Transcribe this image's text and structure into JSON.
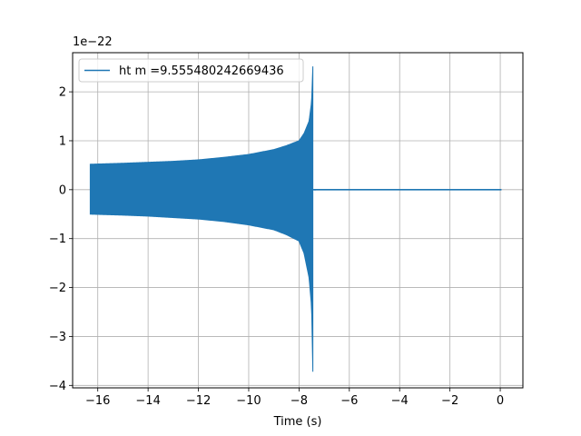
{
  "chart_data": {
    "type": "line",
    "title": "",
    "xlabel": "Time (s)",
    "ylabel": "",
    "y_scale_label": "1e−22",
    "xlim": [
      -17.0,
      0.9
    ],
    "ylim": [
      -4.05,
      2.8
    ],
    "grid": true,
    "legend_position": "top-left",
    "x_ticks": [
      -16,
      -14,
      -12,
      -10,
      -8,
      -6,
      -4,
      -2,
      0
    ],
    "x_tick_labels": [
      "−16",
      "−14",
      "−12",
      "−10",
      "−8",
      "−6",
      "−4",
      "−2",
      "0"
    ],
    "y_ticks": [
      -4,
      -3,
      -2,
      -1,
      0,
      1,
      2
    ],
    "y_tick_labels": [
      "−4",
      "−3",
      "−2",
      "−1",
      "0",
      "1",
      "2"
    ],
    "series": [
      {
        "name": "ht m =9.555480242669436",
        "color": "#1f77b4",
        "start": -16.3,
        "merger": -7.4,
        "end": 0.05,
        "upper_envelope": {
          "x": [
            -16.3,
            -15.0,
            -14.0,
            -13.0,
            -12.0,
            -11.0,
            -10.0,
            -9.0,
            -8.5,
            -8.0,
            -7.8,
            -7.6,
            -7.5,
            -7.45
          ],
          "y": [
            0.52,
            0.54,
            0.56,
            0.58,
            0.61,
            0.66,
            0.72,
            0.82,
            0.9,
            1.0,
            1.15,
            1.4,
            1.8,
            2.52
          ]
        },
        "lower_envelope": {
          "x": [
            -16.3,
            -15.0,
            -14.0,
            -13.0,
            -12.0,
            -11.0,
            -10.0,
            -9.0,
            -8.5,
            -8.0,
            -7.8,
            -7.6,
            -7.5,
            -7.45
          ],
          "y": [
            -0.5,
            -0.52,
            -0.54,
            -0.57,
            -0.6,
            -0.65,
            -0.72,
            -0.82,
            -0.92,
            -1.05,
            -1.3,
            -1.8,
            -2.4,
            -3.72
          ]
        },
        "post_merger_value": 0.0
      }
    ]
  }
}
